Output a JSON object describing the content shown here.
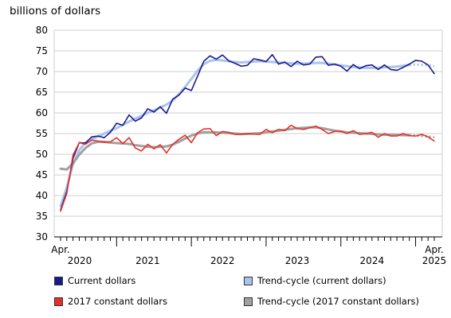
{
  "chart_data": {
    "type": "line",
    "ylabel": "billions of dollars",
    "ylim": [
      30,
      80
    ],
    "yticks": [
      30,
      35,
      40,
      45,
      50,
      55,
      60,
      65,
      70,
      75,
      80
    ],
    "x_start": "2020-04",
    "x_end": "2025-04",
    "x_tick_labels": [
      {
        "label": "Apr.",
        "sub": "2020",
        "month": "2020-04"
      },
      {
        "label": "2021",
        "month": "2021-06"
      },
      {
        "label": "2022",
        "month": "2022-06"
      },
      {
        "label": "2023",
        "month": "2023-06"
      },
      {
        "label": "2024",
        "month": "2024-06"
      },
      {
        "label": "Apr.",
        "sub": "2025",
        "month": "2025-04"
      }
    ],
    "grid": true,
    "legend_placement": "bottom",
    "series": [
      {
        "name": "Current dollars",
        "color": "#1a1a8c",
        "swatch": "#1a1a8c",
        "style": "solid",
        "values": [
          36.5,
          41.0,
          49.0,
          52.8,
          52.7,
          54.2,
          54.4,
          54.0,
          55.3,
          57.5,
          57.0,
          59.5,
          58.0,
          58.8,
          61.0,
          60.2,
          61.5,
          59.9,
          63.3,
          64.3,
          66.0,
          65.4,
          68.9,
          72.5,
          73.8,
          73.0,
          74.0,
          72.6,
          72.0,
          71.3,
          71.5,
          73.1,
          72.8,
          72.4,
          74.1,
          71.8,
          72.3,
          71.2,
          72.5,
          71.6,
          71.8,
          73.5,
          73.6,
          71.5,
          71.8,
          71.3,
          70.1,
          71.7,
          70.7,
          71.4,
          71.6,
          70.5,
          71.6,
          70.5,
          70.3,
          71.0,
          71.8,
          72.7,
          72.5,
          71.6,
          69.5
        ]
      },
      {
        "name": "Trend-cycle (current dollars)",
        "color": "#a8c4ee",
        "swatch": "#a8c4ee",
        "style": "solid",
        "dotted_from": 56,
        "values": [
          37.5,
          42.0,
          47.5,
          51.0,
          52.8,
          53.6,
          54.3,
          55.0,
          55.7,
          56.3,
          57.1,
          57.9,
          58.6,
          59.3,
          60.0,
          60.6,
          61.3,
          62.0,
          63.0,
          64.5,
          66.3,
          68.2,
          70.2,
          71.8,
          72.6,
          72.8,
          72.7,
          72.5,
          72.3,
          72.2,
          72.3,
          72.4,
          72.5,
          72.4,
          72.3,
          72.2,
          72.1,
          72.0,
          71.9,
          71.9,
          72.0,
          72.1,
          72.1,
          71.9,
          71.7,
          71.5,
          71.3,
          71.1,
          71.0,
          70.9,
          70.9,
          70.9,
          71.0,
          71.1,
          71.2,
          71.4,
          71.6,
          71.7,
          71.6,
          71.5,
          71.3
        ]
      },
      {
        "name": "2017 constant dollars",
        "color": "#e8302a",
        "swatch": "#e8302a",
        "style": "solid",
        "values": [
          36.2,
          40.5,
          49.8,
          52.8,
          52.4,
          53.4,
          53.2,
          52.9,
          53.0,
          54.0,
          52.6,
          54.0,
          51.5,
          50.8,
          52.4,
          51.3,
          52.3,
          50.3,
          52.4,
          53.6,
          54.6,
          52.8,
          55.2,
          56.1,
          56.2,
          54.5,
          55.5,
          55.3,
          54.8,
          54.8,
          55.0,
          54.9,
          54.8,
          56.0,
          55.2,
          56.0,
          55.7,
          57.0,
          56.2,
          56.0,
          56.4,
          56.8,
          56.0,
          55.0,
          55.5,
          55.6,
          55.0,
          55.7,
          54.8,
          55.0,
          55.3,
          54.1,
          55.0,
          54.4,
          54.4,
          55.0,
          54.5,
          54.4,
          54.8,
          54.2,
          53.2
        ]
      },
      {
        "name": "Trend-cycle (2017 constant dollars)",
        "color": "#a0a0a0",
        "swatch": "#a0a0a0",
        "style": "solid",
        "dotted_from": 56,
        "values": [
          46.5,
          46.3,
          47.8,
          49.9,
          51.5,
          52.6,
          53.0,
          53.0,
          52.8,
          52.7,
          52.6,
          52.5,
          52.2,
          52.0,
          51.8,
          51.7,
          51.8,
          51.9,
          52.3,
          53.0,
          53.8,
          54.5,
          55.0,
          55.3,
          55.3,
          55.3,
          55.2,
          55.1,
          55.0,
          54.9,
          54.9,
          55.0,
          55.1,
          55.3,
          55.5,
          55.7,
          55.9,
          56.1,
          56.3,
          56.4,
          56.5,
          56.5,
          56.3,
          56.0,
          55.7,
          55.5,
          55.3,
          55.2,
          55.1,
          55.0,
          54.9,
          54.8,
          54.7,
          54.7,
          54.7,
          54.6,
          54.6,
          54.5,
          54.4,
          54.3,
          54.1
        ]
      }
    ]
  }
}
